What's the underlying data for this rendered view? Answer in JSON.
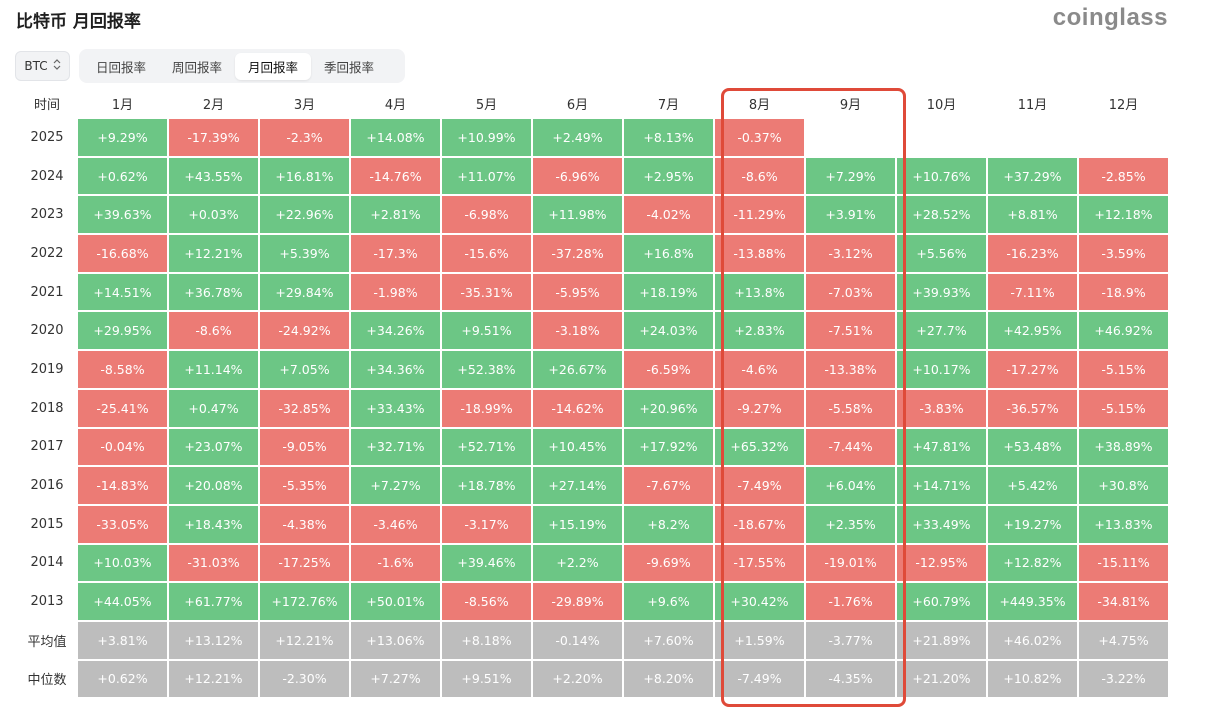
{
  "title": "比特币 月回报率",
  "brand": "coinglass",
  "coin_select": {
    "value": "BTC",
    "icon": "chevron-up-down-icon"
  },
  "tabs": [
    {
      "label": "日回报率",
      "active": false
    },
    {
      "label": "周回报率",
      "active": false
    },
    {
      "label": "月回报率",
      "active": true
    },
    {
      "label": "季回报率",
      "active": false
    }
  ],
  "colors": {
    "positive": "#6cc685",
    "negative": "#ec7b75",
    "summary": "#bdbdbd",
    "highlight": "#df4a39"
  },
  "table": {
    "corner_label": "时间",
    "months": [
      "1月",
      "2月",
      "3月",
      "4月",
      "5月",
      "6月",
      "7月",
      "8月",
      "9月",
      "10月",
      "11月",
      "12月"
    ],
    "rows": [
      {
        "label": "2025",
        "kind": "year",
        "cells": [
          "+9.29%",
          "-17.39%",
          "-2.3%",
          "+14.08%",
          "+10.99%",
          "+2.49%",
          "+8.13%",
          "-0.37%",
          "",
          "",
          "",
          ""
        ]
      },
      {
        "label": "2024",
        "kind": "year",
        "cells": [
          "+0.62%",
          "+43.55%",
          "+16.81%",
          "-14.76%",
          "+11.07%",
          "-6.96%",
          "+2.95%",
          "-8.6%",
          "+7.29%",
          "+10.76%",
          "+37.29%",
          "-2.85%"
        ]
      },
      {
        "label": "2023",
        "kind": "year",
        "cells": [
          "+39.63%",
          "+0.03%",
          "+22.96%",
          "+2.81%",
          "-6.98%",
          "+11.98%",
          "-4.02%",
          "-11.29%",
          "+3.91%",
          "+28.52%",
          "+8.81%",
          "+12.18%"
        ]
      },
      {
        "label": "2022",
        "kind": "year",
        "cells": [
          "-16.68%",
          "+12.21%",
          "+5.39%",
          "-17.3%",
          "-15.6%",
          "-37.28%",
          "+16.8%",
          "-13.88%",
          "-3.12%",
          "+5.56%",
          "-16.23%",
          "-3.59%"
        ]
      },
      {
        "label": "2021",
        "kind": "year",
        "cells": [
          "+14.51%",
          "+36.78%",
          "+29.84%",
          "-1.98%",
          "-35.31%",
          "-5.95%",
          "+18.19%",
          "+13.8%",
          "-7.03%",
          "+39.93%",
          "-7.11%",
          "-18.9%"
        ]
      },
      {
        "label": "2020",
        "kind": "year",
        "cells": [
          "+29.95%",
          "-8.6%",
          "-24.92%",
          "+34.26%",
          "+9.51%",
          "-3.18%",
          "+24.03%",
          "+2.83%",
          "-7.51%",
          "+27.7%",
          "+42.95%",
          "+46.92%"
        ]
      },
      {
        "label": "2019",
        "kind": "year",
        "cells": [
          "-8.58%",
          "+11.14%",
          "+7.05%",
          "+34.36%",
          "+52.38%",
          "+26.67%",
          "-6.59%",
          "-4.6%",
          "-13.38%",
          "+10.17%",
          "-17.27%",
          "-5.15%"
        ]
      },
      {
        "label": "2018",
        "kind": "year",
        "cells": [
          "-25.41%",
          "+0.47%",
          "-32.85%",
          "+33.43%",
          "-18.99%",
          "-14.62%",
          "+20.96%",
          "-9.27%",
          "-5.58%",
          "-3.83%",
          "-36.57%",
          "-5.15%"
        ]
      },
      {
        "label": "2017",
        "kind": "year",
        "cells": [
          "-0.04%",
          "+23.07%",
          "-9.05%",
          "+32.71%",
          "+52.71%",
          "+10.45%",
          "+17.92%",
          "+65.32%",
          "-7.44%",
          "+47.81%",
          "+53.48%",
          "+38.89%"
        ]
      },
      {
        "label": "2016",
        "kind": "year",
        "cells": [
          "-14.83%",
          "+20.08%",
          "-5.35%",
          "+7.27%",
          "+18.78%",
          "+27.14%",
          "-7.67%",
          "-7.49%",
          "+6.04%",
          "+14.71%",
          "+5.42%",
          "+30.8%"
        ]
      },
      {
        "label": "2015",
        "kind": "year",
        "cells": [
          "-33.05%",
          "+18.43%",
          "-4.38%",
          "-3.46%",
          "-3.17%",
          "+15.19%",
          "+8.2%",
          "-18.67%",
          "+2.35%",
          "+33.49%",
          "+19.27%",
          "+13.83%"
        ]
      },
      {
        "label": "2014",
        "kind": "year",
        "cells": [
          "+10.03%",
          "-31.03%",
          "-17.25%",
          "-1.6%",
          "+39.46%",
          "+2.2%",
          "-9.69%",
          "-17.55%",
          "-19.01%",
          "-12.95%",
          "+12.82%",
          "-15.11%"
        ]
      },
      {
        "label": "2013",
        "kind": "year",
        "cells": [
          "+44.05%",
          "+61.77%",
          "+172.76%",
          "+50.01%",
          "-8.56%",
          "-29.89%",
          "+9.6%",
          "+30.42%",
          "-1.76%",
          "+60.79%",
          "+449.35%",
          "-34.81%"
        ]
      },
      {
        "label": "平均值",
        "kind": "summary",
        "cells": [
          "+3.81%",
          "+13.12%",
          "+12.21%",
          "+13.06%",
          "+8.18%",
          "-0.14%",
          "+7.60%",
          "+1.59%",
          "-3.77%",
          "+21.89%",
          "+46.02%",
          "+4.75%"
        ]
      },
      {
        "label": "中位数",
        "kind": "summary",
        "cells": [
          "+0.62%",
          "+12.21%",
          "-2.30%",
          "+7.27%",
          "+9.51%",
          "+2.20%",
          "+8.20%",
          "-7.49%",
          "-4.35%",
          "+21.20%",
          "+10.82%",
          "-3.22%"
        ]
      }
    ]
  }
}
